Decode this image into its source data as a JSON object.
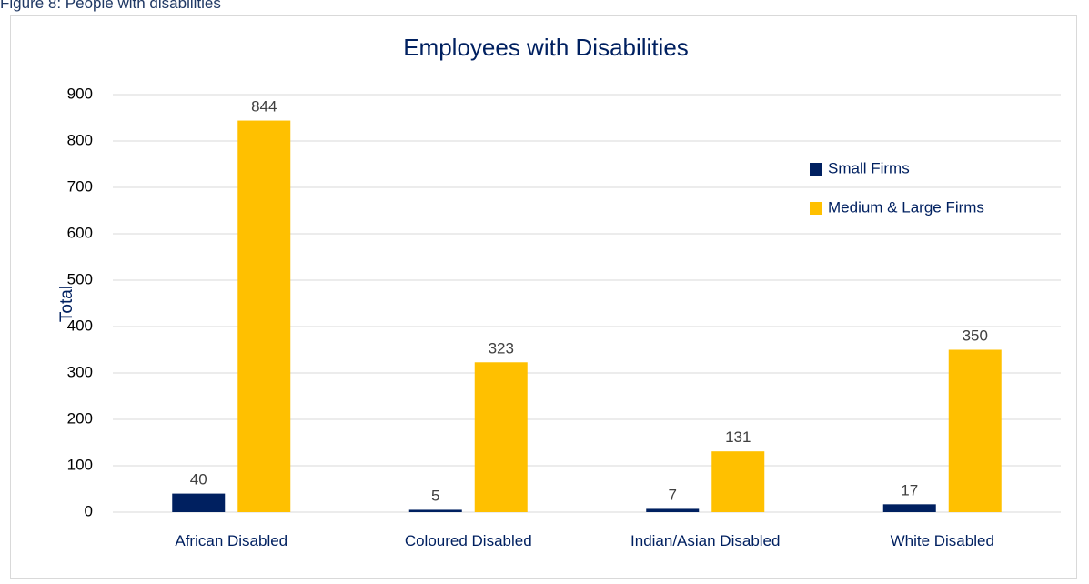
{
  "caption": "Figure 8: People with disabilities",
  "chart_data": {
    "type": "bar",
    "title": "Employees with Disabilities",
    "xlabel": "",
    "ylabel": "Total",
    "ylim": [
      0,
      900
    ],
    "yticks": [
      0,
      100,
      200,
      300,
      400,
      500,
      600,
      700,
      800,
      900
    ],
    "grid": true,
    "legend_position": "top-right",
    "categories": [
      "African Disabled",
      "Coloured Disabled",
      "Indian/Asian Disabled",
      "White Disabled"
    ],
    "series": [
      {
        "name": "Small Firms",
        "color": "#002060",
        "values": [
          40,
          5,
          7,
          17
        ]
      },
      {
        "name": "Medium & Large Firms",
        "color": "#FFC000",
        "values": [
          844,
          323,
          131,
          350
        ]
      }
    ]
  }
}
